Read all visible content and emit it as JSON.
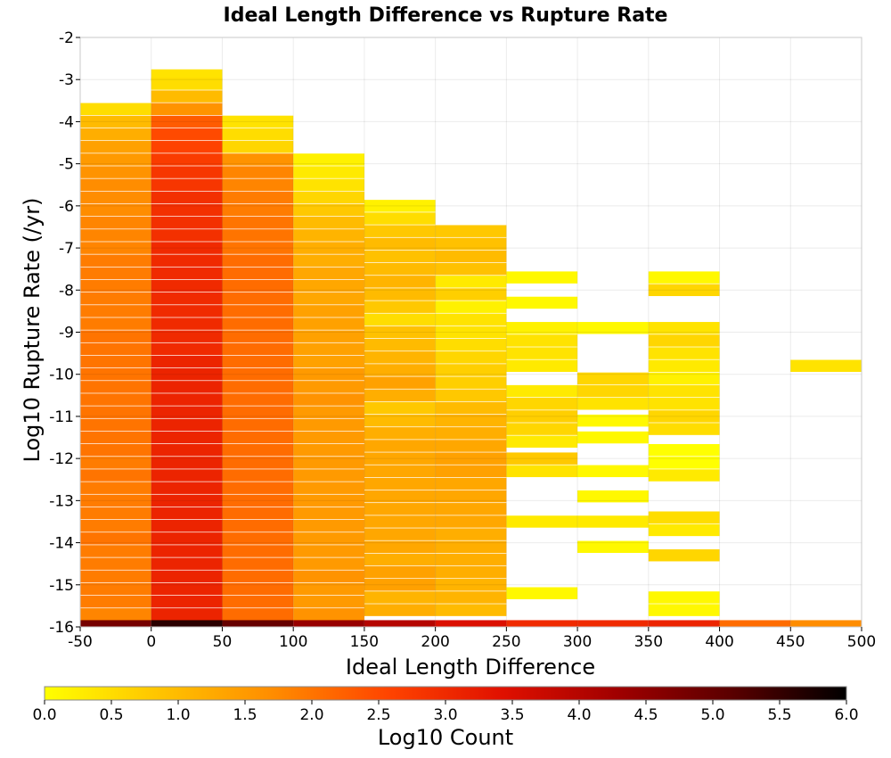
{
  "chart_data": {
    "type": "heatmap",
    "title": "Ideal Length Difference vs Rupture Rate",
    "xlabel": "Ideal Length Difference",
    "ylabel": "Log10 Rupture Rate (/yr)",
    "xlim": [
      -50,
      500
    ],
    "ylim": [
      -16,
      -2
    ],
    "x_ticks": [
      -50,
      0,
      50,
      100,
      150,
      200,
      250,
      300,
      350,
      400,
      450,
      500
    ],
    "y_ticks": [
      -2,
      -3,
      -4,
      -5,
      -6,
      -7,
      -8,
      -9,
      -10,
      -11,
      -12,
      -13,
      -14,
      -15,
      -16
    ],
    "x_bin_width": 50,
    "y_bin_width": 0.285,
    "grid": true,
    "colorbar": {
      "label": "Log10 Count",
      "min": 0.0,
      "max": 6.0,
      "ticks": [
        "0.0",
        "0.5",
        "1.0",
        "1.5",
        "2.0",
        "2.5",
        "3.0",
        "3.5",
        "4.0",
        "4.5",
        "5.0",
        "5.5",
        "6.0"
      ],
      "colormap": [
        "#ffff00",
        "#ffc400",
        "#ff8c00",
        "#ff4400",
        "#e01000",
        "#a00000",
        "#5a0000",
        "#000000"
      ]
    },
    "columns": [
      {
        "x": -25,
        "cells": [
          [
            -3.7,
            0.5
          ],
          [
            -4.0,
            1.0
          ],
          [
            -4.3,
            1.2
          ],
          [
            -4.6,
            1.4
          ],
          [
            -4.9,
            1.5
          ],
          [
            -5.2,
            1.6
          ],
          [
            -5.5,
            1.7
          ],
          [
            -5.8,
            1.7
          ],
          [
            -6.1,
            1.7
          ],
          [
            -6.4,
            1.8
          ],
          [
            -6.7,
            1.8
          ],
          [
            -7.0,
            1.8
          ],
          [
            -7.3,
            1.9
          ],
          [
            -7.6,
            1.9
          ],
          [
            -7.9,
            1.9
          ],
          [
            -8.2,
            1.9
          ],
          [
            -8.5,
            1.9
          ],
          [
            -8.8,
            1.9
          ],
          [
            -9.1,
            2.0
          ],
          [
            -9.4,
            2.0
          ],
          [
            -9.7,
            2.0
          ],
          [
            -10.0,
            2.0
          ],
          [
            -10.3,
            2.0
          ],
          [
            -10.6,
            2.0
          ],
          [
            -10.9,
            2.0
          ],
          [
            -11.2,
            2.0
          ],
          [
            -11.5,
            2.0
          ],
          [
            -11.8,
            2.0
          ],
          [
            -12.1,
            1.9
          ],
          [
            -12.4,
            2.0
          ],
          [
            -12.7,
            1.9
          ],
          [
            -13.0,
            1.9
          ],
          [
            -13.3,
            1.9
          ],
          [
            -13.6,
            1.9
          ],
          [
            -13.9,
            2.0
          ],
          [
            -14.2,
            1.9
          ],
          [
            -14.5,
            1.9
          ],
          [
            -14.8,
            1.9
          ],
          [
            -15.1,
            1.9
          ],
          [
            -15.4,
            1.9
          ],
          [
            -15.7,
            1.8
          ],
          [
            -16.0,
            4.8
          ]
        ]
      },
      {
        "x": 25,
        "cells": [
          [
            -2.9,
            0.4
          ],
          [
            -3.1,
            0.5
          ],
          [
            -3.4,
            1.0
          ],
          [
            -3.7,
            1.6
          ],
          [
            -4.0,
            2.3
          ],
          [
            -4.3,
            2.5
          ],
          [
            -4.6,
            2.6
          ],
          [
            -4.9,
            2.7
          ],
          [
            -5.2,
            2.8
          ],
          [
            -5.5,
            2.8
          ],
          [
            -5.8,
            2.9
          ],
          [
            -6.1,
            2.9
          ],
          [
            -6.4,
            2.9
          ],
          [
            -6.7,
            2.9
          ],
          [
            -7.0,
            3.0
          ],
          [
            -7.3,
            3.0
          ],
          [
            -7.6,
            3.0
          ],
          [
            -7.9,
            3.0
          ],
          [
            -8.2,
            3.0
          ],
          [
            -8.5,
            3.0
          ],
          [
            -8.8,
            3.0
          ],
          [
            -9.1,
            3.0
          ],
          [
            -9.4,
            3.0
          ],
          [
            -9.7,
            3.1
          ],
          [
            -10.0,
            3.1
          ],
          [
            -10.3,
            3.1
          ],
          [
            -10.6,
            3.1
          ],
          [
            -10.9,
            3.1
          ],
          [
            -11.2,
            3.1
          ],
          [
            -11.5,
            3.1
          ],
          [
            -11.8,
            3.1
          ],
          [
            -12.1,
            3.1
          ],
          [
            -12.4,
            3.1
          ],
          [
            -12.7,
            3.1
          ],
          [
            -13.0,
            3.1
          ],
          [
            -13.3,
            3.1
          ],
          [
            -13.6,
            3.1
          ],
          [
            -13.9,
            3.1
          ],
          [
            -14.2,
            3.1
          ],
          [
            -14.5,
            3.1
          ],
          [
            -14.8,
            3.1
          ],
          [
            -15.1,
            3.1
          ],
          [
            -15.4,
            3.1
          ],
          [
            -15.7,
            3.1
          ],
          [
            -16.0,
            5.6
          ]
        ]
      },
      {
        "x": 75,
        "cells": [
          [
            -4.0,
            0.4
          ],
          [
            -4.3,
            0.5
          ],
          [
            -4.6,
            0.6
          ],
          [
            -4.9,
            1.6
          ],
          [
            -5.2,
            1.8
          ],
          [
            -5.5,
            1.8
          ],
          [
            -5.8,
            1.9
          ],
          [
            -6.1,
            1.9
          ],
          [
            -6.4,
            2.0
          ],
          [
            -6.7,
            2.0
          ],
          [
            -7.0,
            2.0
          ],
          [
            -7.3,
            2.1
          ],
          [
            -7.6,
            2.1
          ],
          [
            -7.9,
            2.1
          ],
          [
            -8.2,
            2.1
          ],
          [
            -8.5,
            2.1
          ],
          [
            -8.8,
            2.1
          ],
          [
            -9.1,
            2.1
          ],
          [
            -9.4,
            2.1
          ],
          [
            -9.7,
            2.1
          ],
          [
            -10.0,
            2.1
          ],
          [
            -10.3,
            2.1
          ],
          [
            -10.6,
            2.1
          ],
          [
            -10.9,
            2.1
          ],
          [
            -11.2,
            2.1
          ],
          [
            -11.5,
            2.1
          ],
          [
            -11.8,
            2.1
          ],
          [
            -12.1,
            2.1
          ],
          [
            -12.4,
            2.1
          ],
          [
            -12.7,
            2.1
          ],
          [
            -13.0,
            2.1
          ],
          [
            -13.3,
            2.1
          ],
          [
            -13.6,
            2.1
          ],
          [
            -13.9,
            2.1
          ],
          [
            -14.2,
            2.1
          ],
          [
            -14.5,
            2.1
          ],
          [
            -14.8,
            2.1
          ],
          [
            -15.1,
            2.1
          ],
          [
            -15.4,
            2.1
          ],
          [
            -15.7,
            2.1
          ],
          [
            -16.0,
            5.0
          ]
        ]
      },
      {
        "x": 125,
        "cells": [
          [
            -4.9,
            0.2
          ],
          [
            -5.2,
            0.3
          ],
          [
            -5.5,
            0.4
          ],
          [
            -5.8,
            0.6
          ],
          [
            -6.1,
            0.8
          ],
          [
            -6.4,
            1.0
          ],
          [
            -6.7,
            1.1
          ],
          [
            -7.0,
            1.2
          ],
          [
            -7.3,
            1.2
          ],
          [
            -7.6,
            1.3
          ],
          [
            -7.9,
            1.3
          ],
          [
            -8.2,
            1.3
          ],
          [
            -8.5,
            1.4
          ],
          [
            -8.8,
            1.4
          ],
          [
            -9.1,
            1.4
          ],
          [
            -9.4,
            1.4
          ],
          [
            -9.7,
            1.4
          ],
          [
            -10.0,
            1.5
          ],
          [
            -10.3,
            1.5
          ],
          [
            -10.6,
            1.6
          ],
          [
            -10.9,
            1.5
          ],
          [
            -11.2,
            1.5
          ],
          [
            -11.5,
            1.5
          ],
          [
            -11.8,
            1.5
          ],
          [
            -12.1,
            1.5
          ],
          [
            -12.4,
            1.5
          ],
          [
            -12.7,
            1.5
          ],
          [
            -13.0,
            1.5
          ],
          [
            -13.3,
            1.5
          ],
          [
            -13.6,
            1.5
          ],
          [
            -13.9,
            1.5
          ],
          [
            -14.2,
            1.5
          ],
          [
            -14.5,
            1.5
          ],
          [
            -14.8,
            1.6
          ],
          [
            -15.1,
            1.5
          ],
          [
            -15.4,
            1.5
          ],
          [
            -15.7,
            1.6
          ],
          [
            -16.0,
            4.4
          ]
        ]
      },
      {
        "x": 175,
        "cells": [
          [
            -6.0,
            0.2
          ],
          [
            -6.3,
            0.5
          ],
          [
            -6.6,
            0.8
          ],
          [
            -6.9,
            1.0
          ],
          [
            -7.2,
            0.9
          ],
          [
            -7.5,
            1.0
          ],
          [
            -7.8,
            1.1
          ],
          [
            -8.1,
            1.0
          ],
          [
            -8.4,
            0.8
          ],
          [
            -8.7,
            0.5
          ],
          [
            -9.0,
            0.9
          ],
          [
            -9.3,
            1.0
          ],
          [
            -9.6,
            1.1
          ],
          [
            -9.9,
            1.2
          ],
          [
            -10.2,
            1.4
          ],
          [
            -10.5,
            1.2
          ],
          [
            -10.8,
            0.8
          ],
          [
            -11.1,
            1.0
          ],
          [
            -11.4,
            1.2
          ],
          [
            -11.7,
            1.3
          ],
          [
            -12.0,
            1.3
          ],
          [
            -12.3,
            1.3
          ],
          [
            -12.6,
            1.3
          ],
          [
            -12.9,
            1.3
          ],
          [
            -13.2,
            1.3
          ],
          [
            -13.5,
            1.3
          ],
          [
            -13.8,
            1.3
          ],
          [
            -14.1,
            1.3
          ],
          [
            -14.4,
            1.2
          ],
          [
            -14.7,
            1.4
          ],
          [
            -15.0,
            1.4
          ],
          [
            -15.3,
            1.1
          ],
          [
            -15.6,
            1.2
          ],
          [
            -16.0,
            4.0
          ]
        ]
      },
      {
        "x": 225,
        "cells": [
          [
            -6.6,
            0.8
          ],
          [
            -6.9,
            0.9
          ],
          [
            -7.2,
            1.0
          ],
          [
            -7.5,
            0.9
          ],
          [
            -7.8,
            0.3
          ],
          [
            -8.1,
            0.7
          ],
          [
            -8.4,
            0.2
          ],
          [
            -8.7,
            0.4
          ],
          [
            -9.0,
            0.4
          ],
          [
            -9.3,
            0.5
          ],
          [
            -9.6,
            0.6
          ],
          [
            -9.9,
            0.7
          ],
          [
            -10.2,
            0.7
          ],
          [
            -10.5,
            0.8
          ],
          [
            -10.8,
            1.0
          ],
          [
            -11.1,
            1.1
          ],
          [
            -11.4,
            1.2
          ],
          [
            -11.7,
            1.3
          ],
          [
            -12.0,
            1.4
          ],
          [
            -12.3,
            1.4
          ],
          [
            -12.6,
            1.3
          ],
          [
            -12.9,
            1.3
          ],
          [
            -13.2,
            1.3
          ],
          [
            -13.5,
            1.3
          ],
          [
            -13.8,
            1.2
          ],
          [
            -14.1,
            1.2
          ],
          [
            -14.4,
            1.2
          ],
          [
            -14.7,
            1.2
          ],
          [
            -15.0,
            1.1
          ],
          [
            -15.3,
            1.1
          ],
          [
            -15.6,
            1.0
          ],
          [
            -16.0,
            3.5
          ]
        ]
      },
      {
        "x": 275,
        "cells": [
          [
            -7.7,
            0.1
          ],
          [
            -8.3,
            0.1
          ],
          [
            -8.9,
            0.2
          ],
          [
            -9.2,
            0.4
          ],
          [
            -9.5,
            0.4
          ],
          [
            -9.8,
            0.3
          ],
          [
            -10.4,
            0.3
          ],
          [
            -10.7,
            0.6
          ],
          [
            -11.0,
            0.7
          ],
          [
            -11.3,
            0.6
          ],
          [
            -11.6,
            0.3
          ],
          [
            -12.0,
            0.8
          ],
          [
            -12.3,
            0.4
          ],
          [
            -13.5,
            0.3
          ],
          [
            -15.2,
            0.1
          ],
          [
            -16.0,
            3.0
          ]
        ]
      },
      {
        "x": 325,
        "cells": [
          [
            -8.9,
            0.1
          ],
          [
            -10.1,
            0.6
          ],
          [
            -10.4,
            0.6
          ],
          [
            -10.7,
            0.4
          ],
          [
            -11.1,
            0.1
          ],
          [
            -11.5,
            0.1
          ],
          [
            -12.3,
            0.1
          ],
          [
            -12.9,
            0.1
          ],
          [
            -13.5,
            0.3
          ],
          [
            -14.1,
            0.1
          ],
          [
            -16.0,
            3.0
          ]
        ]
      },
      {
        "x": 375,
        "cells": [
          [
            -7.7,
            0.1
          ],
          [
            -8.0,
            0.6
          ],
          [
            -8.9,
            0.4
          ],
          [
            -9.2,
            0.6
          ],
          [
            -9.5,
            0.4
          ],
          [
            -9.8,
            0.3
          ],
          [
            -10.1,
            0.2
          ],
          [
            -10.4,
            0.4
          ],
          [
            -10.7,
            0.4
          ],
          [
            -11.0,
            0.6
          ],
          [
            -11.3,
            0.5
          ],
          [
            -11.8,
            0.0
          ],
          [
            -12.1,
            0.0
          ],
          [
            -12.4,
            0.3
          ],
          [
            -13.4,
            0.5
          ],
          [
            -13.7,
            0.3
          ],
          [
            -14.3,
            0.6
          ],
          [
            -15.3,
            0.1
          ],
          [
            -15.6,
            0.1
          ],
          [
            -16.0,
            3.1
          ]
        ]
      },
      {
        "x": 425,
        "cells": [
          [
            -16.0,
            2.1
          ]
        ]
      },
      {
        "x": 475,
        "cells": [
          [
            -9.8,
            0.4
          ],
          [
            -16.0,
            1.7
          ]
        ]
      }
    ]
  }
}
